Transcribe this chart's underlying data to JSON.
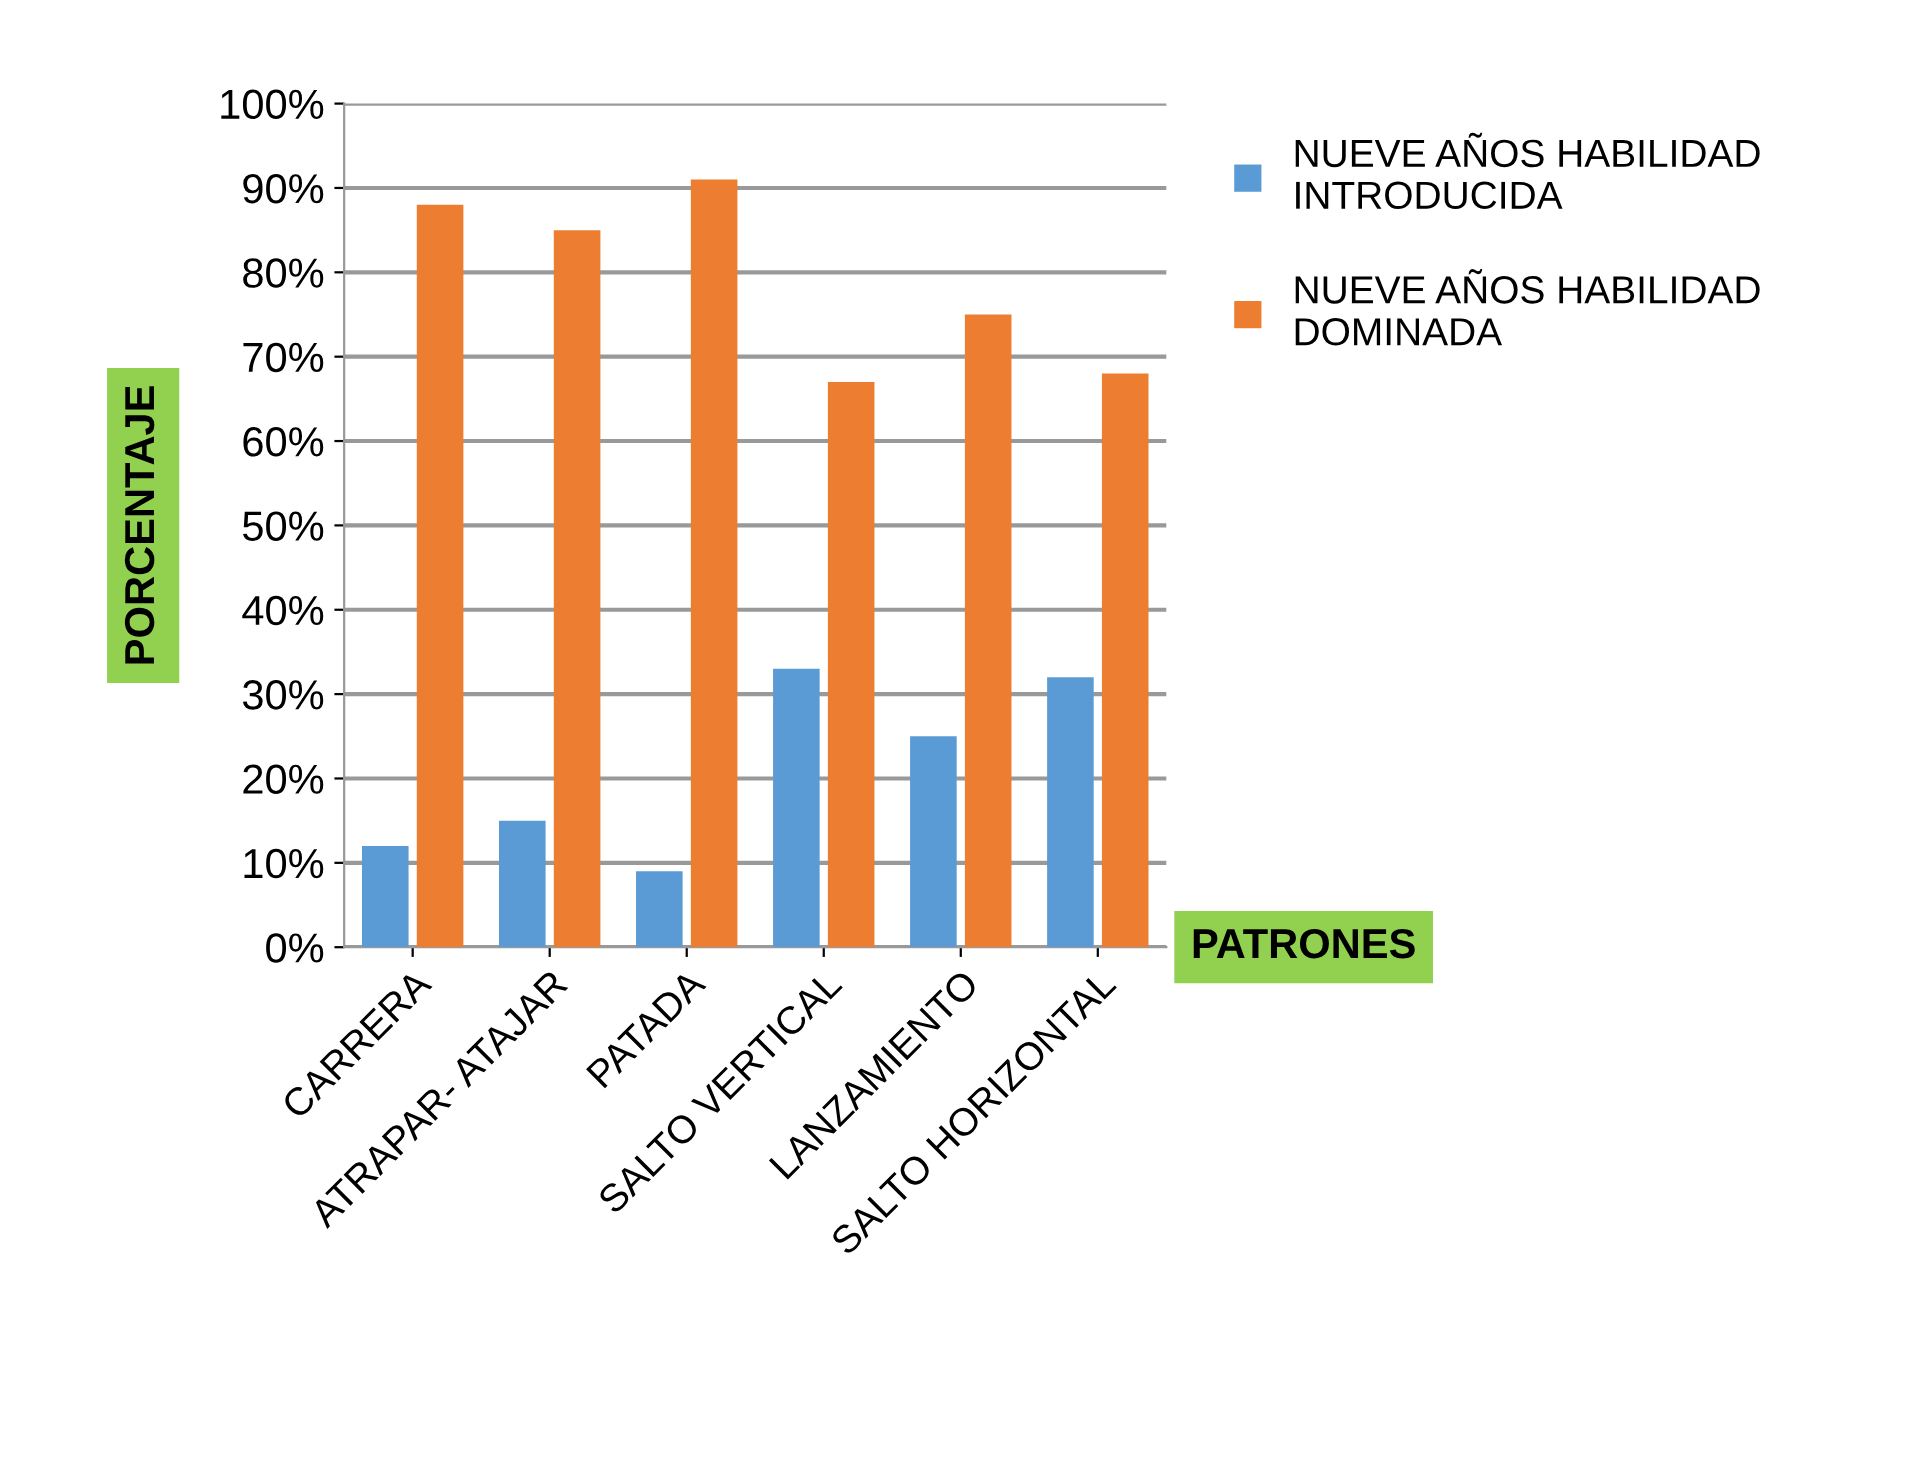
{
  "chart_data": {
    "type": "bar",
    "xlabel": "PATRONES",
    "ylabel": "PORCENTAJE",
    "categories": [
      "CARRERA",
      "ATRAPAR- ATAJAR",
      "PATADA",
      "SALTO VERTICAL",
      "LANZAMIENTO",
      "SALTO HORIZONTAL"
    ],
    "series": [
      {
        "name": "NUEVE AÑOS HABILIDAD INTRODUCIDA",
        "color": "#5b9bd5",
        "values": [
          12,
          15,
          9,
          33,
          25,
          32
        ]
      },
      {
        "name": "NUEVE AÑOS HABILIDAD DOMINADA",
        "color": "#ed7d31",
        "values": [
          88,
          85,
          91,
          67,
          75,
          68
        ]
      }
    ],
    "ylim": [
      0,
      100
    ],
    "yticks": [
      {
        "value": 0,
        "label": "0%"
      },
      {
        "value": 10,
        "label": "10%"
      },
      {
        "value": 20,
        "label": "20%"
      },
      {
        "value": 30,
        "label": "30%"
      },
      {
        "value": 40,
        "label": "40%"
      },
      {
        "value": 50,
        "label": "50%"
      },
      {
        "value": 60,
        "label": "60%"
      },
      {
        "value": 70,
        "label": "70%"
      },
      {
        "value": 80,
        "label": "80%"
      },
      {
        "value": 90,
        "label": "90%"
      },
      {
        "value": 100,
        "label": "100%"
      }
    ],
    "grid": "y",
    "legend": "right"
  }
}
